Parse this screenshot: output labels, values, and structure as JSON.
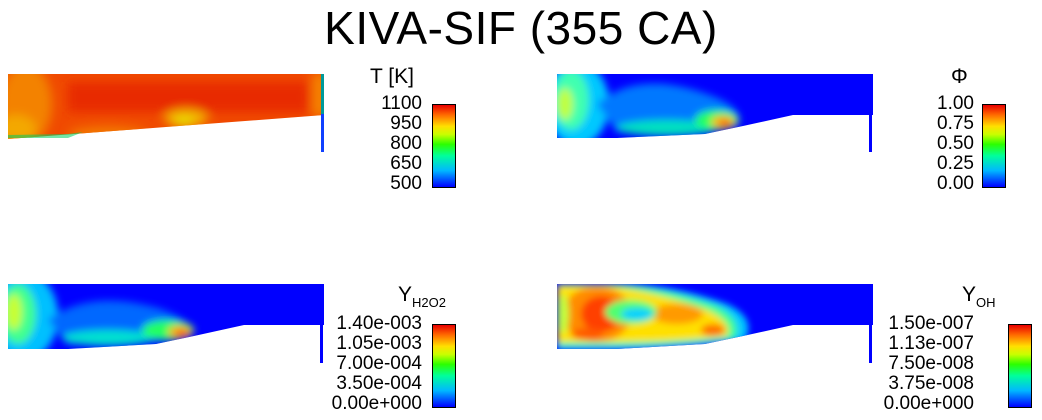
{
  "title": "KIVA-SIF (355 CA)",
  "colors": {
    "rainbow": [
      "#0000ff",
      "#00b8ff",
      "#00ff9c",
      "#2cff00",
      "#c8ff00",
      "#ffe000",
      "#ff6a00",
      "#e80000"
    ],
    "edge_red": "#e00000",
    "edge_blue": "#0000ff"
  },
  "panels": {
    "temperature": {
      "label": "T [K]",
      "ticks": [
        "1100",
        "950",
        "800",
        "650",
        "500"
      ]
    },
    "phi": {
      "label": "Φ",
      "ticks": [
        "1.00",
        "0.75",
        "0.50",
        "0.25",
        "0.00"
      ]
    },
    "h2o2": {
      "label_main": "Y",
      "label_sub": "H2O2",
      "ticks": [
        "1.40e-003",
        "1.05e-003",
        "7.00e-004",
        "3.50e-004",
        "0.00e+000"
      ]
    },
    "oh": {
      "label_main": "Y",
      "label_sub": "OH",
      "ticks": [
        "1.50e-007",
        "1.13e-007",
        "7.50e-008",
        "3.75e-008",
        "0.00e+000"
      ]
    }
  }
}
